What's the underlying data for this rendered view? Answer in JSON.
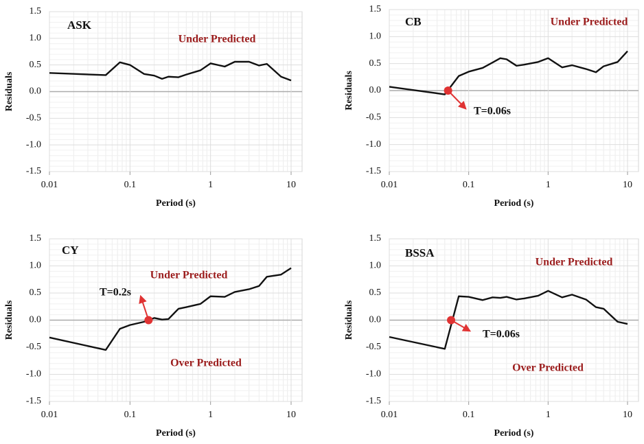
{
  "chart_data": [
    {
      "type": "line",
      "title": "ASK",
      "x_label": "Period (s)",
      "y_label": "Residuals",
      "xscale": "log",
      "x": [
        0.01,
        0.05,
        0.075,
        0.1,
        0.15,
        0.2,
        0.25,
        0.3,
        0.4,
        0.5,
        0.75,
        1,
        1.5,
        2,
        3,
        4,
        5,
        7.5,
        10
      ],
      "series": [
        {
          "color": "#111111",
          "values": [
            0.35,
            0.31,
            0.55,
            0.5,
            0.33,
            0.3,
            0.24,
            0.28,
            0.27,
            0.32,
            0.4,
            0.53,
            0.47,
            0.56,
            0.56,
            0.49,
            0.52,
            0.28,
            0.21
          ]
        }
      ],
      "xlim": [
        0.01,
        10
      ],
      "xticks": [
        0.01,
        0.1,
        1,
        10
      ],
      "ylim": [
        -1.5,
        1.5
      ],
      "yticks": [
        -1.5,
        {
          "value": -1,
          "label": "-1.0"
        },
        -0.5,
        {
          "value": 0,
          "label": "0.0"
        },
        0.5,
        {
          "value": 1,
          "label": "1.0"
        },
        1.5
      ],
      "annotations": [
        {
          "text": "Under Predicted",
          "color": "#9b1c1c"
        }
      ],
      "markers": []
    },
    {
      "type": "line",
      "title": "CB",
      "x_label": "Period (s)",
      "y_label": "Residuals",
      "xscale": "log",
      "x": [
        0.01,
        0.05,
        0.075,
        0.1,
        0.15,
        0.2,
        0.25,
        0.3,
        0.4,
        0.5,
        0.75,
        1,
        1.5,
        2,
        3,
        4,
        5,
        7.5,
        10
      ],
      "series": [
        {
          "color": "#111111",
          "values": [
            0.07,
            -0.07,
            0.27,
            0.35,
            0.42,
            0.52,
            0.6,
            0.58,
            0.46,
            0.48,
            0.53,
            0.6,
            0.43,
            0.47,
            0.4,
            0.34,
            0.45,
            0.53,
            0.73
          ]
        }
      ],
      "xlim": [
        0.01,
        10
      ],
      "xticks": [
        0.01,
        0.1,
        1,
        10
      ],
      "ylim": [
        -1.5,
        1.5
      ],
      "yticks": [
        -1.5,
        {
          "value": -1,
          "label": "-1.0"
        },
        -0.5,
        {
          "value": 0,
          "label": "0.0"
        },
        0.5,
        {
          "value": 1,
          "label": "1.0"
        },
        1.5
      ],
      "annotations": [
        {
          "text": "Under Predicted",
          "color": "#9b1c1c"
        },
        {
          "text": "T=0.06s",
          "color": "#111111"
        }
      ],
      "markers": [
        {
          "x": 0.055,
          "y": 0,
          "color": "#e03333"
        }
      ]
    },
    {
      "type": "line",
      "title": "CY",
      "x_label": "Period (s)",
      "y_label": "Residuals",
      "xscale": "log",
      "x": [
        0.01,
        0.05,
        0.075,
        0.1,
        0.15,
        0.2,
        0.25,
        0.3,
        0.4,
        0.5,
        0.75,
        1,
        1.5,
        2,
        3,
        4,
        5,
        7.5,
        10
      ],
      "series": [
        {
          "color": "#111111",
          "values": [
            -0.32,
            -0.55,
            -0.16,
            -0.09,
            -0.03,
            0.04,
            0.01,
            0.02,
            0.21,
            0.24,
            0.3,
            0.44,
            0.43,
            0.52,
            0.57,
            0.63,
            0.8,
            0.84,
            0.96
          ]
        }
      ],
      "xlim": [
        0.01,
        10
      ],
      "xticks": [
        0.01,
        0.1,
        1,
        10
      ],
      "ylim": [
        -1.5,
        1.5
      ],
      "yticks": [
        -1.5,
        {
          "value": -1,
          "label": "-1.0"
        },
        -0.5,
        {
          "value": 0,
          "label": "0.0"
        },
        0.5,
        {
          "value": 1,
          "label": "1.0"
        },
        1.5
      ],
      "annotations": [
        {
          "text": "Under Predicted",
          "color": "#9b1c1c"
        },
        {
          "text": "T=0.2s",
          "color": "#111111"
        },
        {
          "text": "Over Predicted",
          "color": "#9b1c1c"
        }
      ],
      "markers": [
        {
          "x": 0.17,
          "y": 0,
          "color": "#e03333"
        }
      ]
    },
    {
      "type": "line",
      "title": "BSSA",
      "x_label": "Period (s)",
      "y_label": "Residuals",
      "xscale": "log",
      "x": [
        0.01,
        0.05,
        0.075,
        0.1,
        0.15,
        0.2,
        0.25,
        0.3,
        0.4,
        0.5,
        0.75,
        1,
        1.5,
        2,
        3,
        4,
        5,
        7.5,
        10
      ],
      "series": [
        {
          "color": "#111111",
          "values": [
            -0.31,
            -0.53,
            0.44,
            0.43,
            0.37,
            0.42,
            0.41,
            0.43,
            0.38,
            0.4,
            0.45,
            0.54,
            0.42,
            0.47,
            0.38,
            0.24,
            0.21,
            -0.03,
            -0.07
          ]
        }
      ],
      "xlim": [
        0.01,
        10
      ],
      "xticks": [
        0.01,
        0.1,
        1,
        10
      ],
      "ylim": [
        -1.5,
        1.5
      ],
      "yticks": [
        -1.5,
        {
          "value": -1,
          "label": "-1.0"
        },
        -0.5,
        {
          "value": 0,
          "label": "0.0"
        },
        0.5,
        {
          "value": 1,
          "label": "1.0"
        },
        1.5
      ],
      "annotations": [
        {
          "text": "Under Predicted",
          "color": "#9b1c1c"
        },
        {
          "text": "T=0.06s",
          "color": "#111111"
        },
        {
          "text": "Over Predicted",
          "color": "#9b1c1c"
        }
      ],
      "markers": [
        {
          "x": 0.06,
          "y": 0,
          "color": "#e03333"
        }
      ]
    }
  ]
}
